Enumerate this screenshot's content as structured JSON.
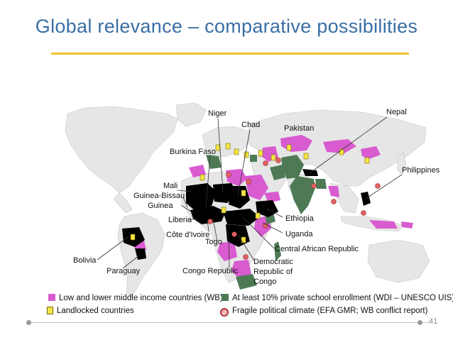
{
  "title": "Global  relevance  –  comparative  possibilities",
  "labels": {
    "niger": "Niger",
    "chad": "Chad",
    "pakistan": "Pakistan",
    "nepal": "Nepal",
    "burkina_faso": "Burkina  Faso",
    "philippines": "Philippines",
    "mali": "Mali",
    "guinea_bissau": "Guinea-Bissau",
    "guinea": "Guinea",
    "liberia": "Liberia",
    "ethiopia": "Ethiopia",
    "cote_divoire": "Côte  d'Ivoire",
    "uganda": "Uganda",
    "togo": "Togo",
    "central_african_republic": "Central African Republic",
    "bolivia": "Bolivia",
    "drc": "Democratic Republic of Congo",
    "paraguay": "Paraguay",
    "congo_republic": "Congo  Republic"
  },
  "legend": {
    "low_income": "Low  and  lower  middle  income  countries  (WB)",
    "private_school": "At  least  10%  private  school  enrollment  (WDI  –  UNESCO  UIS)",
    "landlocked": "Landlocked  countries",
    "fragile": "Fragile  political  climate  (EFA  GMR; WB  conflict  report)"
  },
  "colors": {
    "low_income": "#d95bd0",
    "private_school": "#4d7a55",
    "focus_country": "#000000",
    "landlocked": "#f4e542",
    "fragile": "#e26262"
  },
  "page_number": "41"
}
